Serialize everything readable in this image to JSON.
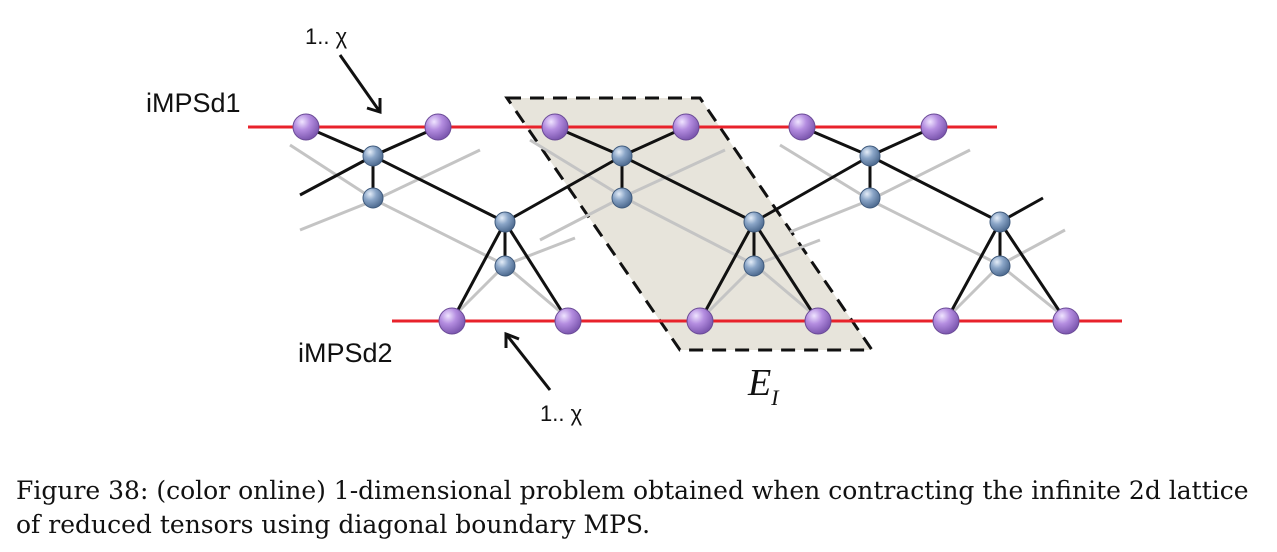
{
  "labels": {
    "top_mps": "iMPSd1",
    "bottom_mps": "iMPSd2",
    "top_bond": "1.. χ",
    "bottom_bond": "1.. χ",
    "environment_main": "E",
    "environment_sub": "I"
  },
  "caption": "Figure 38: (color online) 1-dimensional problem obtained when contracting the infinite 2d lattice of reduced tensors using diagonal boundary MPS.",
  "colors": {
    "mps_line": "#e8222b",
    "mps_node": "#b48de0",
    "tensor_node": "#8aa5c7",
    "front_bond": "#111111",
    "back_bond": "#bdbdbd",
    "environment_fill": "#e7e4db"
  }
}
